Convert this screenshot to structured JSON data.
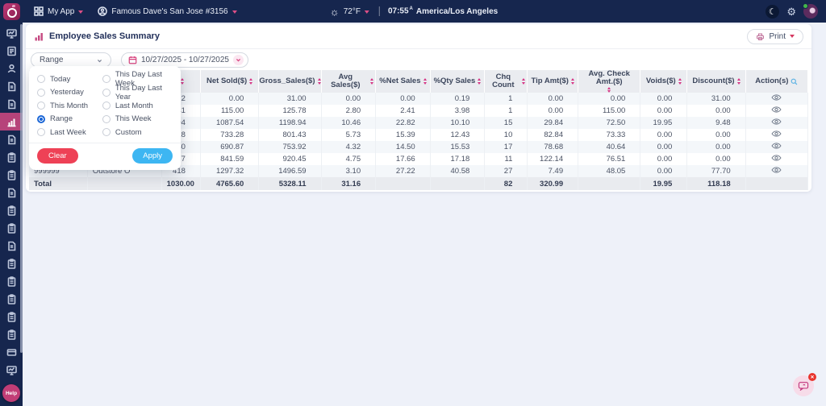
{
  "colors": {
    "navy": "#16264e",
    "accent_pink": "#d63384",
    "active_item": "#b6437a",
    "apply_blue": "#3db6f2",
    "clear_red": "#ee4156"
  },
  "topbar": {
    "app_menu": "My App",
    "store": "Famous Dave's San Jose #3156",
    "temperature": "72°F",
    "time": "07:55",
    "time_suffix": "A",
    "timezone": "America/Los Angeles"
  },
  "sidebar": {
    "help_label": "Help",
    "items": [
      {
        "name": "dashboard",
        "icon": "monitor",
        "active": false
      },
      {
        "name": "news",
        "icon": "news",
        "active": false
      },
      {
        "name": "profile",
        "icon": "person",
        "active": false
      },
      {
        "name": "report-1",
        "icon": "doc",
        "active": false
      },
      {
        "name": "report-2",
        "icon": "doc",
        "active": false
      },
      {
        "name": "sales-reports",
        "icon": "chart",
        "active": true
      },
      {
        "name": "report-3",
        "icon": "doc",
        "active": false
      },
      {
        "name": "report-4",
        "icon": "clip",
        "active": false
      },
      {
        "name": "report-5",
        "icon": "clip",
        "active": false
      },
      {
        "name": "report-6",
        "icon": "doc",
        "active": false
      },
      {
        "name": "report-7",
        "icon": "clip",
        "active": false
      },
      {
        "name": "report-8",
        "icon": "clip",
        "active": false
      },
      {
        "name": "report-9",
        "icon": "doc",
        "active": false
      },
      {
        "name": "report-10",
        "icon": "clip",
        "active": false
      },
      {
        "name": "report-11",
        "icon": "clip",
        "active": false
      },
      {
        "name": "report-12",
        "icon": "clip",
        "active": false
      },
      {
        "name": "report-13",
        "icon": "clip",
        "active": false
      },
      {
        "name": "report-14",
        "icon": "clip",
        "active": false
      },
      {
        "name": "payments",
        "icon": "card",
        "active": false
      },
      {
        "name": "terminal",
        "icon": "monitor",
        "active": false
      }
    ]
  },
  "page": {
    "title": "Employee Sales Summary",
    "print_label": "Print"
  },
  "filters": {
    "range_label": "Range",
    "date_range": "10/27/2025 - 10/27/2025",
    "dropdown": {
      "options": [
        {
          "label": "Today",
          "selected": false
        },
        {
          "label": "Yesterday",
          "selected": false
        },
        {
          "label": "This Month",
          "selected": false
        },
        {
          "label": "Range",
          "selected": true
        },
        {
          "label": "Last Week",
          "selected": false
        },
        {
          "label": "This Day Last Week",
          "selected": false
        },
        {
          "label": "This Day Last Year",
          "selected": false
        },
        {
          "label": "Last Month",
          "selected": false
        },
        {
          "label": "This Week",
          "selected": false
        },
        {
          "label": "Custom",
          "selected": false
        }
      ],
      "clear_label": "Clear",
      "apply_label": "Apply"
    }
  },
  "table": {
    "columns": [
      {
        "key": "emp_id",
        "label": "",
        "width": 7.5,
        "align": "left",
        "sortable": false
      },
      {
        "key": "name",
        "label": "",
        "width": 9.5,
        "align": "left",
        "sortable": false
      },
      {
        "key": "qty",
        "label": "",
        "width": 5,
        "align": "right",
        "sortable": true
      },
      {
        "key": "net_sold",
        "label": "Net Sold($)",
        "width": 7.5,
        "align": "right",
        "sortable": true
      },
      {
        "key": "gross_sales",
        "label": "Gross_Sales($)",
        "width": 8,
        "align": "right",
        "sortable": true
      },
      {
        "key": "avg_sales",
        "label": "Avg Sales($)",
        "width": 7,
        "align": "right",
        "sortable": true
      },
      {
        "key": "pct_net_sales",
        "label": "%Net Sales",
        "width": 7,
        "align": "right",
        "sortable": true
      },
      {
        "key": "pct_qty_sales",
        "label": "%Qty Sales",
        "width": 7,
        "align": "right",
        "sortable": true
      },
      {
        "key": "chq_count",
        "label": "Chq Count",
        "width": 5.5,
        "align": "right",
        "sortable": true
      },
      {
        "key": "tip_amt",
        "label": "Tip Amt($)",
        "width": 6.5,
        "align": "right",
        "sortable": true
      },
      {
        "key": "avg_check_amt",
        "label": "Avg. Check Amt.($)",
        "width": 8,
        "align": "right",
        "sortable": true,
        "stack": true
      },
      {
        "key": "voids",
        "label": "Voids($)",
        "width": 6,
        "align": "right",
        "sortable": true
      },
      {
        "key": "discount",
        "label": "Discount($)",
        "width": 7.5,
        "align": "right",
        "sortable": true
      },
      {
        "key": "actions",
        "label": "Action(s)",
        "width": 8,
        "align": "center",
        "sortable": false,
        "search": true
      }
    ],
    "rows": [
      [
        "",
        "",
        "2",
        "0.00",
        "31.00",
        "0.00",
        "0.00",
        "0.19",
        "1",
        "0.00",
        "0.00",
        "0.00",
        "31.00"
      ],
      [
        "",
        "",
        "41",
        "115.00",
        "125.78",
        "2.80",
        "2.41",
        "3.98",
        "1",
        "0.00",
        "115.00",
        "0.00",
        "0.00"
      ],
      [
        "",
        "",
        "104",
        "1087.54",
        "1198.94",
        "10.46",
        "22.82",
        "10.10",
        "15",
        "29.84",
        "72.50",
        "19.95",
        "9.48"
      ],
      [
        "",
        "",
        "128",
        "733.28",
        "801.43",
        "5.73",
        "15.39",
        "12.43",
        "10",
        "82.84",
        "73.33",
        "0.00",
        "0.00"
      ],
      [
        "",
        "",
        "160",
        "690.87",
        "753.92",
        "4.32",
        "14.50",
        "15.53",
        "17",
        "78.68",
        "40.64",
        "0.00",
        "0.00"
      ],
      [
        "",
        "",
        "177",
        "841.59",
        "920.45",
        "4.75",
        "17.66",
        "17.18",
        "11",
        "122.14",
        "76.51",
        "0.00",
        "0.00"
      ],
      [
        "999999",
        "Outstore O",
        "418",
        "1297.32",
        "1496.59",
        "3.10",
        "27.22",
        "40.58",
        "27",
        "7.49",
        "48.05",
        "0.00",
        "77.70"
      ]
    ],
    "total": [
      "Total",
      "",
      "1030.00",
      "4765.60",
      "5328.11",
      "31.16",
      "",
      "",
      "82",
      "320.99",
      "",
      "19.95",
      "118.18",
      ""
    ]
  },
  "chat": {
    "badge": "✕"
  }
}
